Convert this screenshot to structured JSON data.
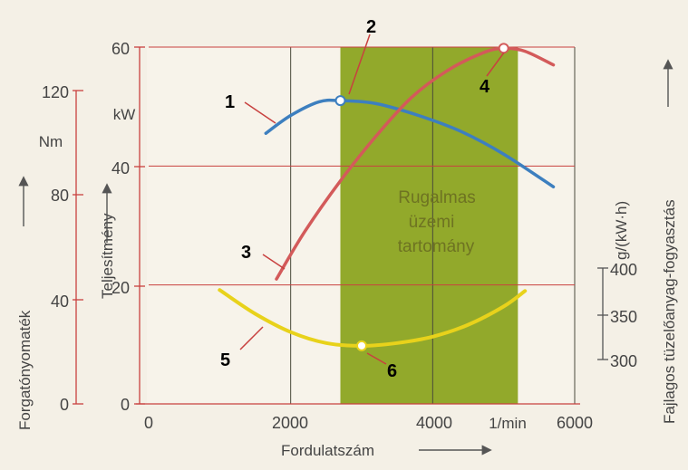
{
  "chart_data": {
    "type": "line",
    "x_axis": {
      "label": "Fordulatszám",
      "unit": "1/min",
      "ticks": [
        "0",
        "2000",
        "4000",
        "6000"
      ],
      "range": [
        0,
        6000
      ]
    },
    "power_axis": {
      "label": "Teljesítmény",
      "unit": "kW",
      "ticks": [
        "0",
        "20",
        "40",
        "60"
      ],
      "range": [
        0,
        60
      ]
    },
    "torque_axis": {
      "label": "Forgatónyomaték",
      "unit": "Nm",
      "ticks": [
        "0",
        "40",
        "80",
        "120"
      ],
      "range": [
        0,
        120
      ]
    },
    "consumption_axis": {
      "label": "Fajlagos tüzelőanyag-fogyasztás",
      "unit": "g/(kW·h)",
      "ticks": [
        "300",
        "350",
        "400"
      ]
    },
    "band": {
      "label": [
        "Rugalmas",
        "üzemi",
        "tartomány"
      ],
      "x_range": [
        2700,
        5200
      ],
      "color": "#8ca421"
    },
    "series": [
      {
        "id": "torque",
        "color": "#3d7fbf",
        "x": [
          1650,
          2000,
          2400,
          2700,
          3200,
          3800,
          4400,
          5000,
          5700
        ],
        "y": [
          45.5,
          48.5,
          50.8,
          51.0,
          50.5,
          48.5,
          45.8,
          42.0,
          36.5
        ]
      },
      {
        "id": "power",
        "color": "#d35a5a",
        "x": [
          1800,
          2200,
          2700,
          3200,
          3700,
          4200,
          4700,
          5000,
          5300,
          5700
        ],
        "y": [
          21.0,
          29.0,
          37.5,
          45.0,
          51.5,
          56.0,
          59.0,
          59.8,
          59.3,
          57.0
        ]
      },
      {
        "id": "consumption",
        "color": "#e8d21b",
        "x": [
          1000,
          1500,
          2000,
          2500,
          3000,
          3500,
          4000,
          4500,
          5000,
          5300
        ],
        "y": [
          376,
          350,
          330,
          318,
          315,
          318,
          325,
          338,
          358,
          375
        ]
      }
    ],
    "markers": [
      {
        "series": "torque",
        "x": 2700,
        "y": 51.0
      },
      {
        "series": "power",
        "x": 5000,
        "y": 59.8
      },
      {
        "series": "consumption",
        "x": 3000,
        "y": 315
      }
    ],
    "callouts": [
      "1",
      "2",
      "3",
      "4",
      "5",
      "6"
    ]
  }
}
